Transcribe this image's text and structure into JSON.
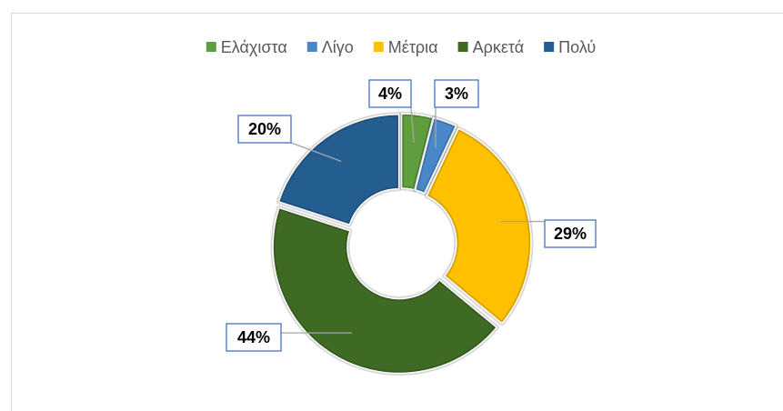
{
  "chart_data": {
    "type": "donut",
    "categories": [
      "Ελάχιστα",
      "Λίγο",
      "Μέτρια",
      "Αρκετά",
      "Πολύ"
    ],
    "values": [
      4,
      3,
      29,
      44,
      20
    ],
    "value_labels": [
      "4%",
      "3%",
      "29%",
      "44%",
      "20%"
    ],
    "colors": [
      "#5e9e3e",
      "#4a87c9",
      "#ffc000",
      "#3f6a24",
      "#245e91"
    ],
    "legend": "top"
  }
}
